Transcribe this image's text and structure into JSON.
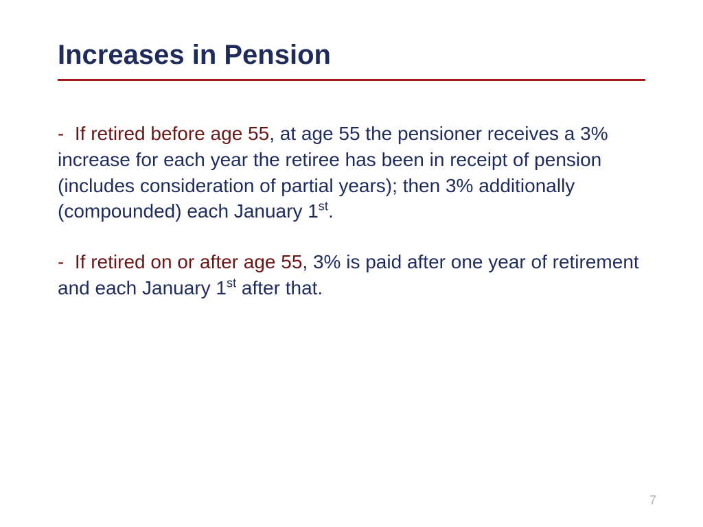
{
  "slide": {
    "title": "Increases in Pension",
    "title_color": "#1f2b5b",
    "title_fontsize": 40,
    "title_fontweight": "bold",
    "divider_color": "#a01818",
    "divider_thickness": 3,
    "body_color": "#1f2b5b",
    "highlight_color": "#6b1515",
    "body_fontsize": 28,
    "background_color": "#ffffff",
    "bullets": [
      {
        "dash": "-",
        "highlight": "If retired before age 55",
        "rest_before_sup": ", at age 55 the pensioner receives a 3% increase for each year the retiree has been in receipt of pension (includes consideration of partial years); then 3% additionally (compounded) each January 1",
        "sup": "st",
        "rest_after_sup": "."
      },
      {
        "dash": "-",
        "highlight": "If retired on or after age 55",
        "rest_before_sup": ", 3% is paid after one year of retirement and each January 1",
        "sup": "st",
        "rest_after_sup": " after that."
      }
    ],
    "page_number": "7",
    "page_number_color": "#b0b0b0",
    "page_number_fontsize": 18
  }
}
